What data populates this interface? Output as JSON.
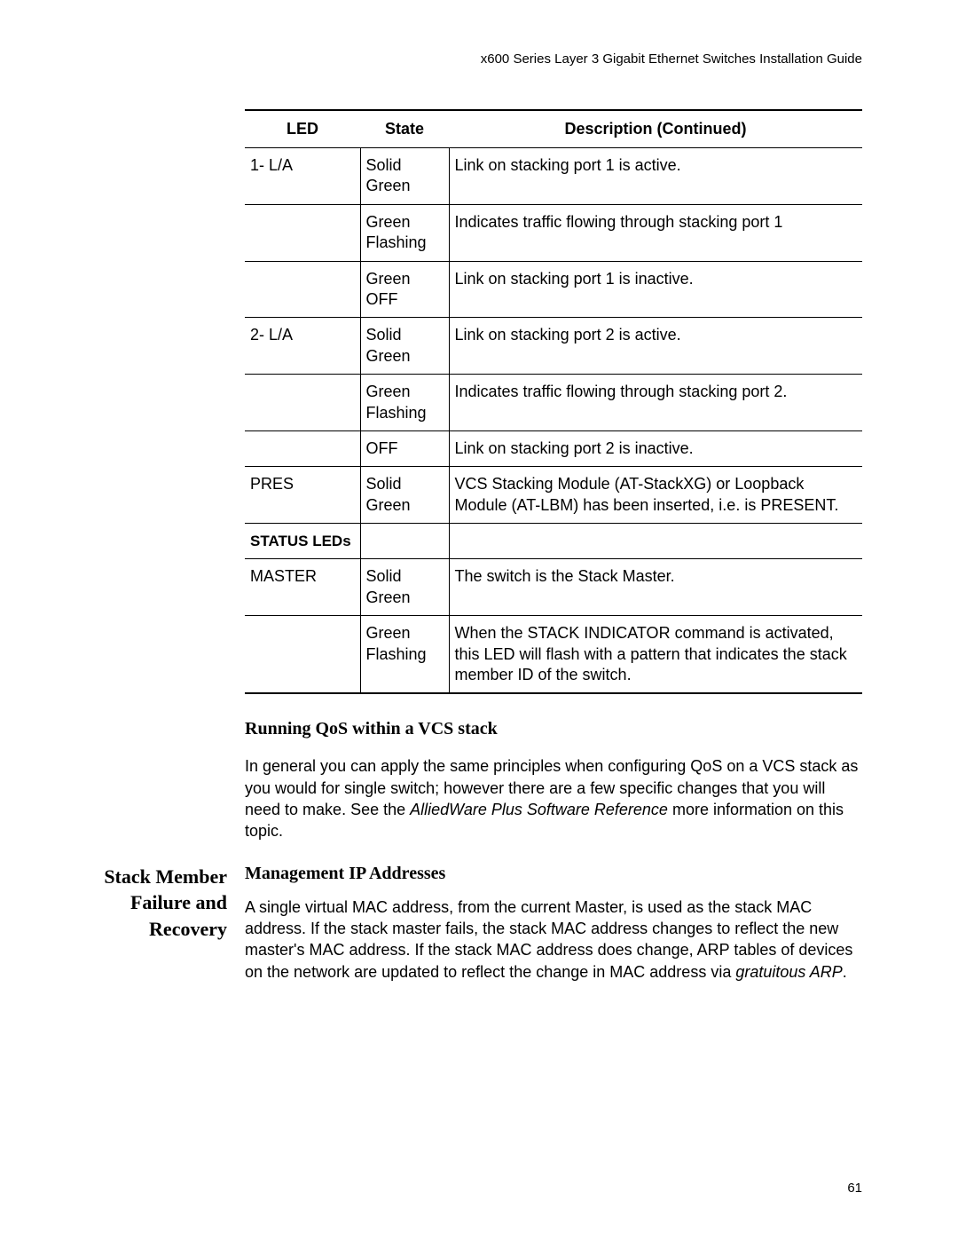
{
  "header": "x600 Series Layer 3 Gigabit Ethernet Switches Installation Guide",
  "table": {
    "columns": [
      "LED",
      "State",
      "Description (Continued)"
    ],
    "rows": [
      {
        "led": "1- L/A",
        "state": "Solid Green",
        "desc": "Link on stacking port 1 is active."
      },
      {
        "led": "",
        "state": "Green Flashing",
        "desc": "Indicates traffic flowing through stacking port 1"
      },
      {
        "led": "",
        "state": "Green OFF",
        "desc": "Link on stacking port 1 is inactive."
      },
      {
        "led": "2- L/A",
        "state": "Solid Green",
        "desc": "Link on stacking port 2 is active."
      },
      {
        "led": "",
        "state": "Green Flashing",
        "desc": "Indicates traffic flowing through stacking port 2."
      },
      {
        "led": "",
        "state": "OFF",
        "desc": "Link on stacking port 2 is inactive."
      },
      {
        "led": "PRES",
        "state": "Solid Green",
        "desc": "VCS Stacking Module (AT-StackXG) or Loopback Module (AT-LBM) has been inserted, i.e. is PRESENT."
      },
      {
        "led": "STATUS LEDs",
        "state": "",
        "desc": "",
        "is_status_header": true
      },
      {
        "led": "MASTER",
        "state": "Solid Green",
        "desc": "The switch is the Stack Master."
      },
      {
        "led": "",
        "state": "Green Flashing",
        "desc": "When the STACK INDICATOR command is activated, this LED will flash with a pattern that indicates the stack member ID of the switch."
      }
    ]
  },
  "qos_section": {
    "heading": "Running QoS within a VCS stack",
    "body_pre": "In general you can apply the same principles when configuring QoS on a VCS stack as you would for single switch; however there are a few specific changes that you will need to make. See the ",
    "body_italic": "AlliedWare Plus Software Reference",
    "body_post": " more information on this topic."
  },
  "failure_section": {
    "left_title": "Stack Member Failure and Recovery",
    "sub_heading": "Management IP Addresses",
    "body_pre": "A single virtual MAC address, from the current Master, is used as the stack MAC address. If the stack master fails, the stack MAC address changes to reflect the new master's MAC address. If the stack MAC address does change, ARP tables of devices on the network are updated to reflect the change in MAC address via ",
    "body_italic": "gratuitous ARP",
    "body_post": "."
  },
  "page_number": "61"
}
